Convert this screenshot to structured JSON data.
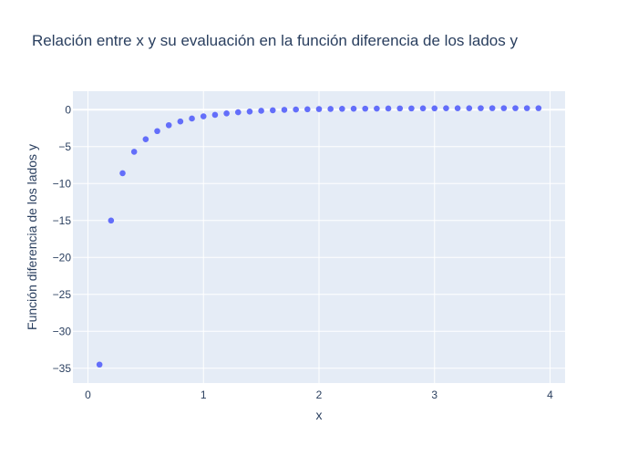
{
  "chart_data": {
    "type": "scatter",
    "title": "Relación entre x y su evaluación en la función diferencia de los lados y",
    "xlabel": "x",
    "ylabel": "Función diferencia de los lados y",
    "xlim": [
      -0.13,
      4.13
    ],
    "ylim": [
      -37,
      2.5
    ],
    "xticks": [
      0,
      1,
      2,
      3,
      4
    ],
    "yticks": [
      0,
      -5,
      -10,
      -15,
      -20,
      -25,
      -30,
      -35
    ],
    "ytick_labels": [
      "0",
      "−5",
      "−10",
      "−15",
      "−20",
      "−25",
      "−30",
      "−35"
    ],
    "grid": true,
    "colors": {
      "marker": "#636efa",
      "plot_bg": "#e5ecf6",
      "grid": "#ffffff",
      "text": "#2a3f5f"
    },
    "x": [
      0.1,
      0.2,
      0.3,
      0.4,
      0.5,
      0.6,
      0.7,
      0.8,
      0.9,
      1.0,
      1.1,
      1.2,
      1.3,
      1.4,
      1.5,
      1.6,
      1.7,
      1.8,
      1.9,
      2.0,
      2.1,
      2.2,
      2.3,
      2.4,
      2.5,
      2.6,
      2.7,
      2.8,
      2.9,
      3.0,
      3.1,
      3.2,
      3.3,
      3.4,
      3.5,
      3.6,
      3.7,
      3.8,
      3.9
    ],
    "y": [
      -34.5,
      -15.0,
      -8.6,
      -5.7,
      -4.0,
      -2.9,
      -2.1,
      -1.6,
      -1.2,
      -0.9,
      -0.7,
      -0.5,
      -0.35,
      -0.25,
      -0.15,
      -0.08,
      -0.02,
      0.02,
      0.05,
      0.08,
      0.1,
      0.12,
      0.13,
      0.14,
      0.15,
      0.16,
      0.17,
      0.17,
      0.18,
      0.18,
      0.19,
      0.19,
      0.19,
      0.2,
      0.2,
      0.2,
      0.2,
      0.2,
      0.2
    ]
  }
}
